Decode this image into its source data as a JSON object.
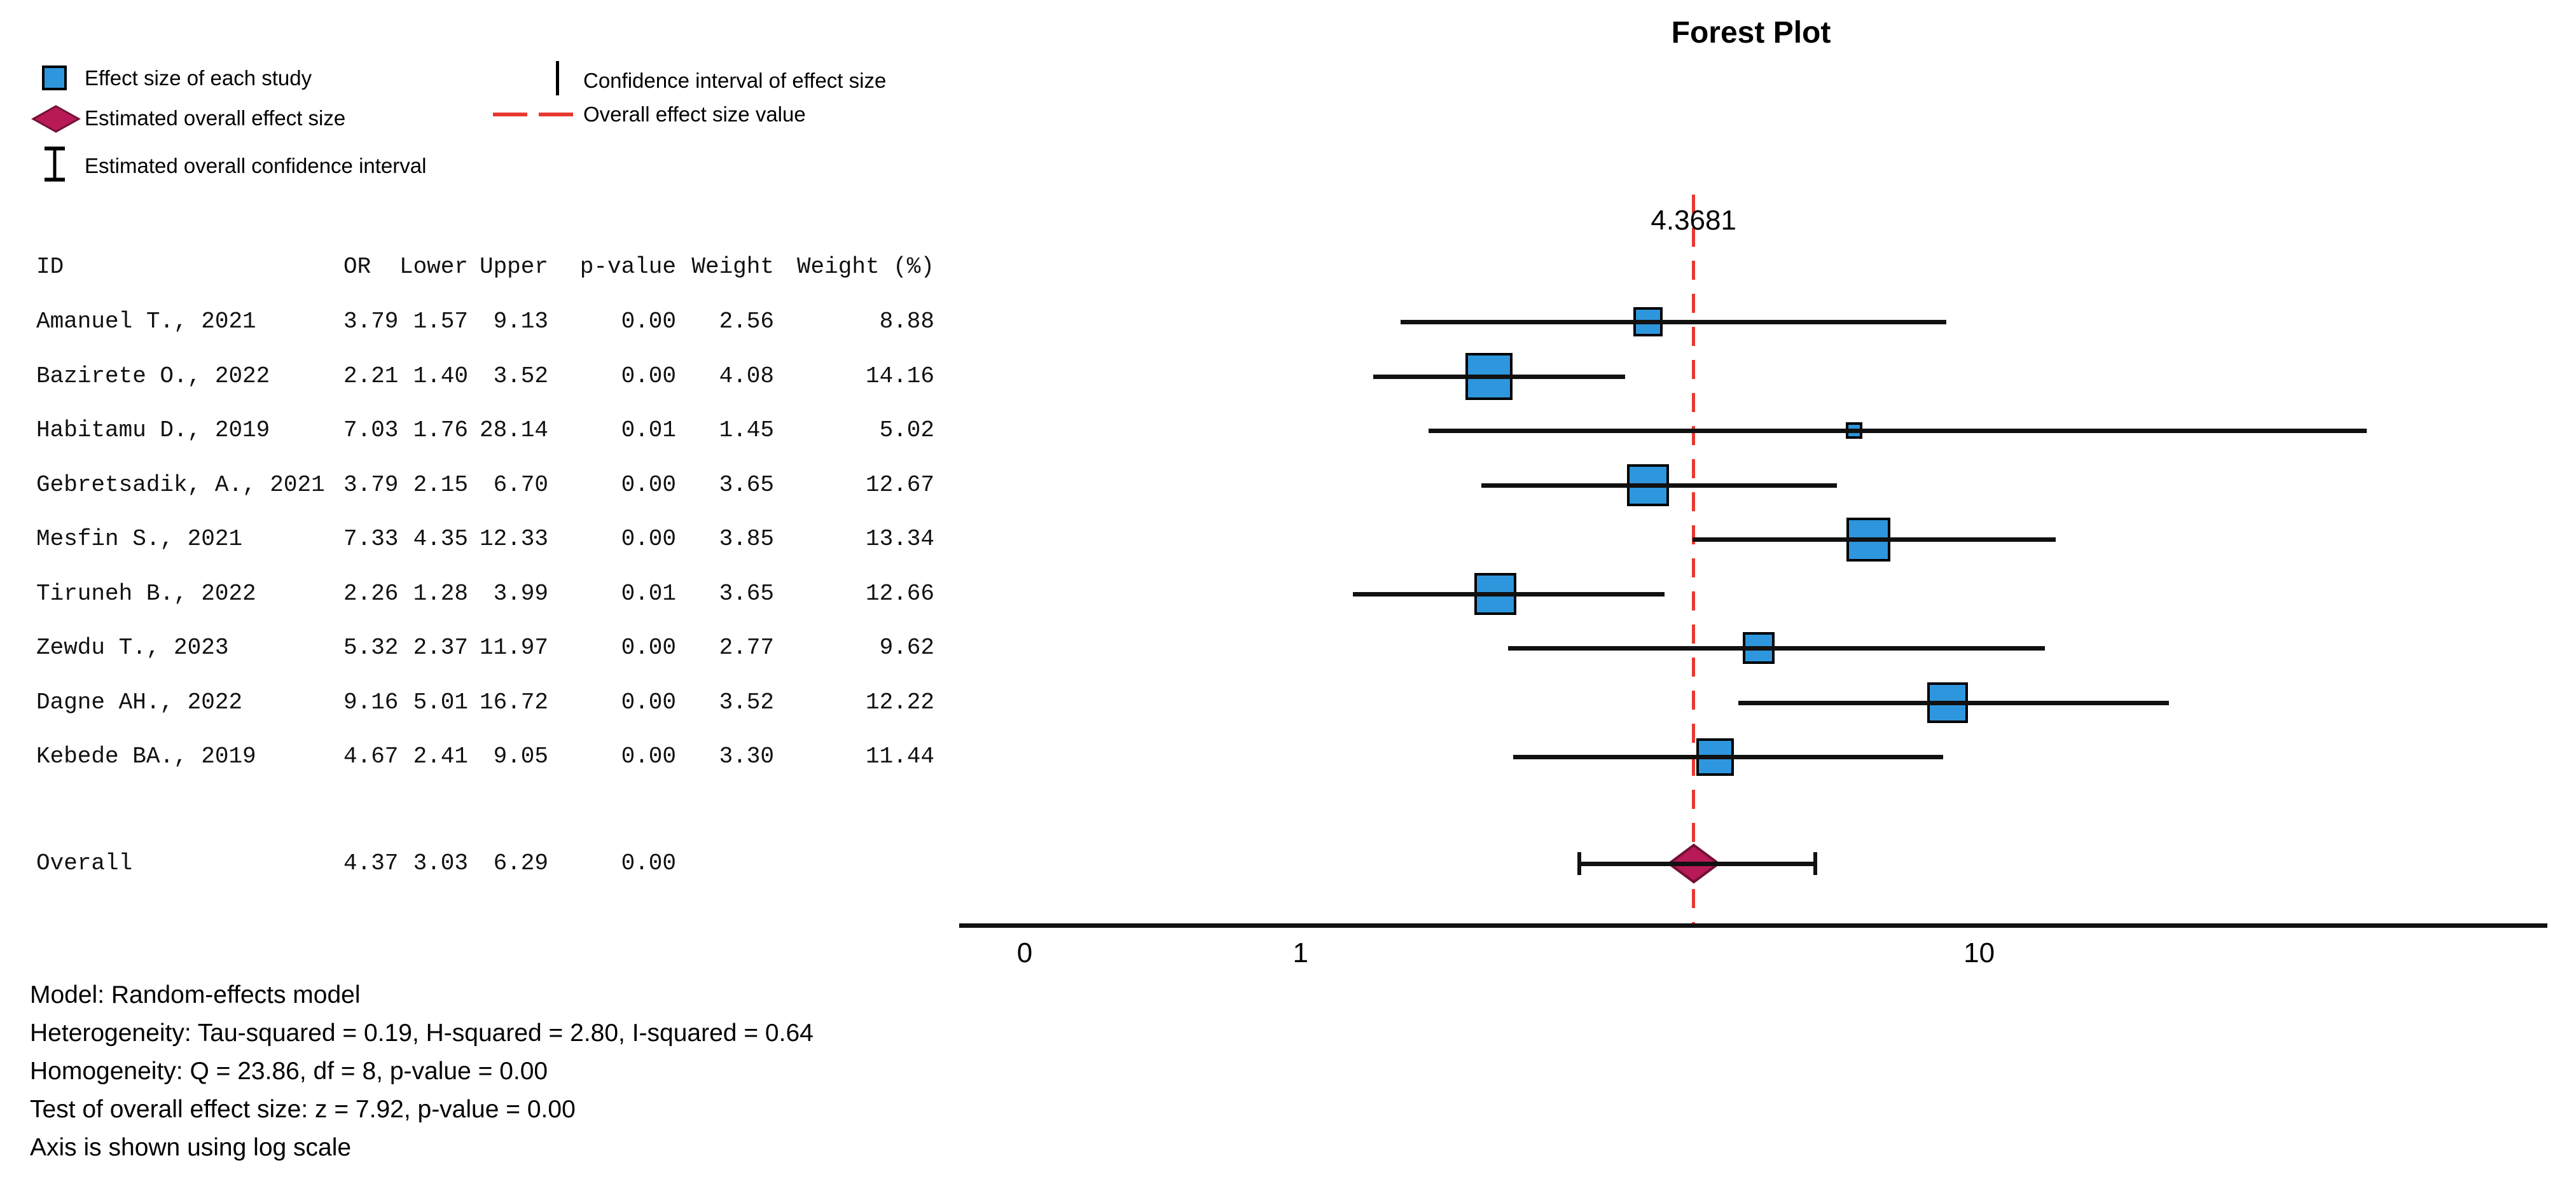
{
  "title": "Forest Plot",
  "legend": {
    "left": [
      {
        "glyph": "blue-square",
        "label": "Effect size of each study"
      },
      {
        "glyph": "overall-diamond",
        "label": "Estimated overall effect size"
      },
      {
        "glyph": "i-bar",
        "label": "Estimated overall confidence interval"
      }
    ],
    "right": [
      {
        "glyph": "vertical-line",
        "label": "Confidence interval of effect size"
      },
      {
        "glyph": "red-dashes",
        "label": "Overall effect size value"
      }
    ]
  },
  "table": {
    "columns": [
      "ID",
      "OR",
      "Lower",
      "Upper",
      "p-value",
      "Weight",
      "Weight (%)"
    ]
  },
  "chart_data": {
    "type": "forest",
    "title": "Forest Plot",
    "x_axis": {
      "tick_labels": [
        "0",
        "1",
        "10"
      ],
      "tick_values": [
        0,
        1,
        10
      ],
      "scale": "log10(x+1)",
      "note": "Axis is shown using log scale"
    },
    "overall_line_label": "4.3681",
    "studies": [
      {
        "id": "Amanuel T., 2021",
        "or": "3.79",
        "lower": "1.57",
        "upper": "9.13",
        "p_value": "0.00",
        "weight": "2.56",
        "weight_pct": "8.88"
      },
      {
        "id": "Bazirete O., 2022",
        "or": "2.21",
        "lower": "1.40",
        "upper": "3.52",
        "p_value": "0.00",
        "weight": "4.08",
        "weight_pct": "14.16"
      },
      {
        "id": "Habitamu D., 2019",
        "or": "7.03",
        "lower": "1.76",
        "upper": "28.14",
        "p_value": "0.01",
        "weight": "1.45",
        "weight_pct": "5.02"
      },
      {
        "id": "Gebretsadik, A., 2021",
        "or": "3.79",
        "lower": "2.15",
        "upper": "6.70",
        "p_value": "0.00",
        "weight": "3.65",
        "weight_pct": "12.67"
      },
      {
        "id": "Mesfin S., 2021",
        "or": "7.33",
        "lower": "4.35",
        "upper": "12.33",
        "p_value": "0.00",
        "weight": "3.85",
        "weight_pct": "13.34"
      },
      {
        "id": "Tiruneh B., 2022",
        "or": "2.26",
        "lower": "1.28",
        "upper": "3.99",
        "p_value": "0.01",
        "weight": "3.65",
        "weight_pct": "12.66"
      },
      {
        "id": "Zewdu T., 2023",
        "or": "5.32",
        "lower": "2.37",
        "upper": "11.97",
        "p_value": "0.00",
        "weight": "2.77",
        "weight_pct": "9.62"
      },
      {
        "id": "Dagne AH., 2022",
        "or": "9.16",
        "lower": "5.01",
        "upper": "16.72",
        "p_value": "0.00",
        "weight": "3.52",
        "weight_pct": "12.22"
      },
      {
        "id": "Kebede BA., 2019",
        "or": "4.67",
        "lower": "2.41",
        "upper": "9.05",
        "p_value": "0.00",
        "weight": "3.30",
        "weight_pct": "11.44"
      }
    ],
    "overall": {
      "id": "Overall",
      "or": "4.37",
      "lower": "3.03",
      "upper": "6.29",
      "p_value": "0.00",
      "weight": "",
      "weight_pct": ""
    }
  },
  "footnotes": [
    "Model: Random-effects model",
    "Heterogeneity: Tau-squared = 0.19, H-squared = 2.80, I-squared = 0.64",
    "Homogeneity: Q = 23.86, df = 8, p-value = 0.00",
    "Test of overall effect size: z = 7.92, p-value = 0.00",
    "Axis is shown using log scale"
  ],
  "colors": {
    "study_square": "#2E96DC",
    "diamond_fill": "#B81A56",
    "diamond_border": "#731137",
    "overall_line": "#E8392F",
    "line": "#111111"
  }
}
